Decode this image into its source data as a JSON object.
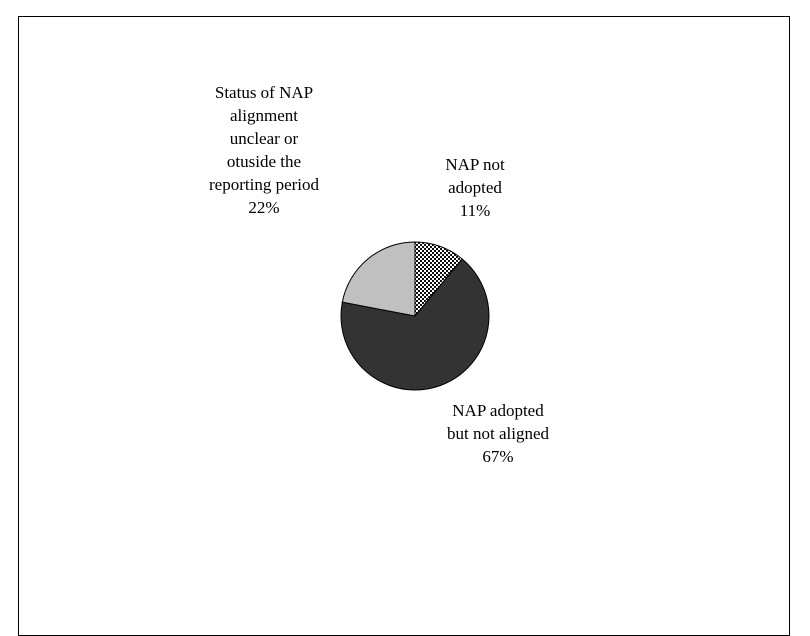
{
  "chart_data": {
    "type": "pie",
    "slices": [
      {
        "label_lines": [
          "NAP not",
          "adopted"
        ],
        "pct_text": "11%",
        "value": 11,
        "fill": "pattern"
      },
      {
        "label_lines": [
          "NAP adopted",
          "but not aligned"
        ],
        "pct_text": "67%",
        "value": 67,
        "fill": "#333333"
      },
      {
        "label_lines": [
          "Status of NAP",
          "alignment",
          "unclear or",
          "otuside the",
          "reporting period"
        ],
        "pct_text": "22%",
        "value": 22,
        "fill": "#c0c0c0"
      }
    ],
    "start_angle_deg": 0,
    "direction": "clockwise",
    "legend": "none",
    "data_labels": "category name and percentage, outside slices"
  }
}
